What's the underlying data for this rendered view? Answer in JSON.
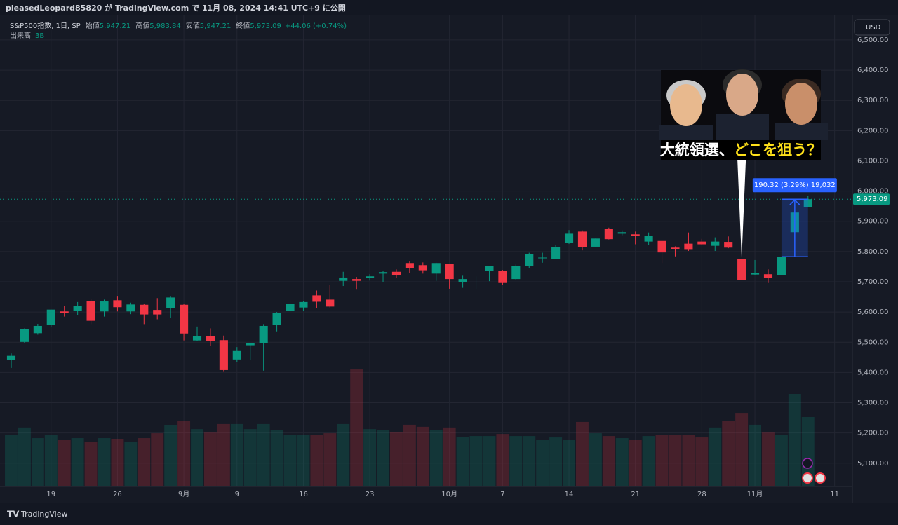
{
  "header": {
    "text": "pleasedLeopard85820 が TradingView.com で 11月 08, 2024 14:41 UTC+9 に公開"
  },
  "currency": "USD",
  "legend": {
    "symbol": "S&P500指数, 1日, SP",
    "fields": [
      {
        "label": "始値",
        "value": "5,947.21"
      },
      {
        "label": "高値",
        "value": "5,983.84"
      },
      {
        "label": "安値",
        "value": "5,947.21"
      },
      {
        "label": "終値",
        "value": "5,973.09"
      }
    ],
    "change": "+44.06 (+0.74%)",
    "volume_label": "出来高"
  },
  "footer": {
    "brand": "TradingView"
  },
  "chart_data": {
    "type": "candlestick",
    "up_color": "#089981",
    "down_color": "#f23645",
    "open": [
      5442,
      5501,
      5530,
      5557,
      5602,
      5603,
      5637,
      5602,
      5639,
      5602,
      5624,
      5607,
      5612,
      5624,
      5506,
      5520,
      5507,
      5443,
      5490,
      5496,
      5558,
      5604,
      5615,
      5655,
      5641,
      5703,
      5709,
      5712,
      5727,
      5733,
      5762,
      5755,
      5727,
      5758,
      5698,
      5698,
      5737,
      5737,
      5709,
      5751,
      5778,
      5775,
      5829,
      5866,
      5816,
      5875,
      5859,
      5857,
      5833,
      5835,
      5813,
      5826,
      5833,
      5819,
      5832,
      5775,
      5724,
      5725,
      5722,
      5864,
      5947.21
    ],
    "high": [
      5463,
      5546,
      5561,
      5608,
      5620,
      5633,
      5643,
      5641,
      5651,
      5631,
      5627,
      5646,
      5651,
      5626,
      5552,
      5546,
      5522,
      5484,
      5497,
      5560,
      5600,
      5636,
      5636,
      5671,
      5690,
      5733,
      5716,
      5725,
      5735,
      5741,
      5767,
      5764,
      5763,
      5758,
      5720,
      5718,
      5751,
      5739,
      5757,
      5796,
      5796,
      5822,
      5871,
      5870,
      5843,
      5879,
      5870,
      5866,
      5863,
      5835,
      5817,
      5863,
      5842,
      5847,
      5850,
      5775,
      5772,
      5741,
      5783,
      5933,
      5983.84
    ],
    "low": [
      5415,
      5497,
      5525,
      5550,
      5585,
      5591,
      5560,
      5585,
      5602,
      5593,
      5560,
      5576,
      5581,
      5506,
      5503,
      5488,
      5402,
      5434,
      5442,
      5406,
      5536,
      5599,
      5605,
      5614,
      5615,
      5686,
      5674,
      5704,
      5698,
      5714,
      5729,
      5727,
      5703,
      5677,
      5680,
      5675,
      5702,
      5690,
      5706,
      5745,
      5763,
      5775,
      5825,
      5804,
      5814,
      5840,
      5854,
      5824,
      5822,
      5762,
      5784,
      5802,
      5822,
      5802,
      5811,
      5705,
      5723,
      5696,
      5722,
      5864,
      5947.21
    ],
    "close": [
      5455,
      5543,
      5554,
      5608,
      5597,
      5620,
      5571,
      5635,
      5616,
      5625,
      5592,
      5592,
      5648,
      5529,
      5520,
      5503,
      5408,
      5471,
      5496,
      5554,
      5596,
      5626,
      5633,
      5634,
      5618,
      5714,
      5703,
      5718,
      5732,
      5722,
      5745,
      5738,
      5762,
      5709,
      5709,
      5700,
      5751,
      5696,
      5751,
      5792,
      5780,
      5815,
      5859,
      5815,
      5843,
      5841,
      5864,
      5853,
      5851,
      5797,
      5809,
      5808,
      5824,
      5833,
      5813,
      5705,
      5729,
      5712,
      5782,
      5929.03,
      5973.09
    ],
    "last_price_label": "5,973.09",
    "volume": [
      2.24,
      2.55,
      2.09,
      2.24,
      2.0,
      2.09,
      1.94,
      2.09,
      2.03,
      1.94,
      2.09,
      2.3,
      2.64,
      2.82,
      2.48,
      2.33,
      2.7,
      2.7,
      2.48,
      2.7,
      2.45,
      2.24,
      2.24,
      2.24,
      2.3,
      2.7,
      5.06,
      2.48,
      2.45,
      2.36,
      2.67,
      2.58,
      2.45,
      2.55,
      2.15,
      2.18,
      2.18,
      2.27,
      2.18,
      2.18,
      2.0,
      2.12,
      2.0,
      2.79,
      2.3,
      2.18,
      2.09,
      2.0,
      2.18,
      2.24,
      2.24,
      2.24,
      2.12,
      2.55,
      2.82,
      3.18,
      2.67,
      2.33,
      2.24,
      4.0,
      3.0
    ],
    "volume_value_label": "3B",
    "vlim": [
      0,
      10
    ],
    "xlim": [
      -0.845,
      63.34
    ],
    "xticks": [
      {
        "value": 3,
        "label": "19"
      },
      {
        "value": 8,
        "label": "26"
      },
      {
        "value": 13,
        "label": "9月"
      },
      {
        "value": 17,
        "label": "9"
      },
      {
        "value": 22,
        "label": "16"
      },
      {
        "value": 27,
        "label": "23"
      },
      {
        "value": 33,
        "label": "10月"
      },
      {
        "value": 37,
        "label": "7"
      },
      {
        "value": 42,
        "label": "14"
      },
      {
        "value": 47,
        "label": "21"
      },
      {
        "value": 52,
        "label": "28"
      },
      {
        "value": 56,
        "label": "11月"
      },
      {
        "value": 62,
        "label": "11"
      }
    ],
    "ylim": [
      5023,
      6581
    ],
    "yticks": [
      {
        "value": 6500,
        "label": "6,500.00"
      },
      {
        "value": 6400,
        "label": "6,400.00"
      },
      {
        "value": 6300,
        "label": "6,300.00"
      },
      {
        "value": 6200,
        "label": "6,200.00"
      },
      {
        "value": 6100,
        "label": "6,100.00"
      },
      {
        "value": 6000,
        "label": "6,000.00"
      },
      {
        "value": 5900,
        "label": "5,900.00"
      },
      {
        "value": 5800,
        "label": "5,800.00"
      },
      {
        "value": 5700,
        "label": "5,700.00"
      },
      {
        "value": 5600,
        "label": "5,600.00"
      },
      {
        "value": 5500,
        "label": "5,500.00"
      },
      {
        "value": 5400,
        "label": "5,400.00"
      },
      {
        "value": 5300,
        "label": "5,300.00"
      },
      {
        "value": 5200,
        "label": "5,200.00"
      },
      {
        "value": 5100,
        "label": "5,100.00"
      }
    ],
    "grid": true,
    "measure": {
      "from": 5782.77,
      "to": 5973.09,
      "x_from": 58,
      "x_to": 60,
      "label": "190.32 (3.29%) 19,032"
    },
    "thumbnail": {
      "text": [
        "大統領選、",
        "どこを狙う？"
      ],
      "points_to": 55
    }
  }
}
